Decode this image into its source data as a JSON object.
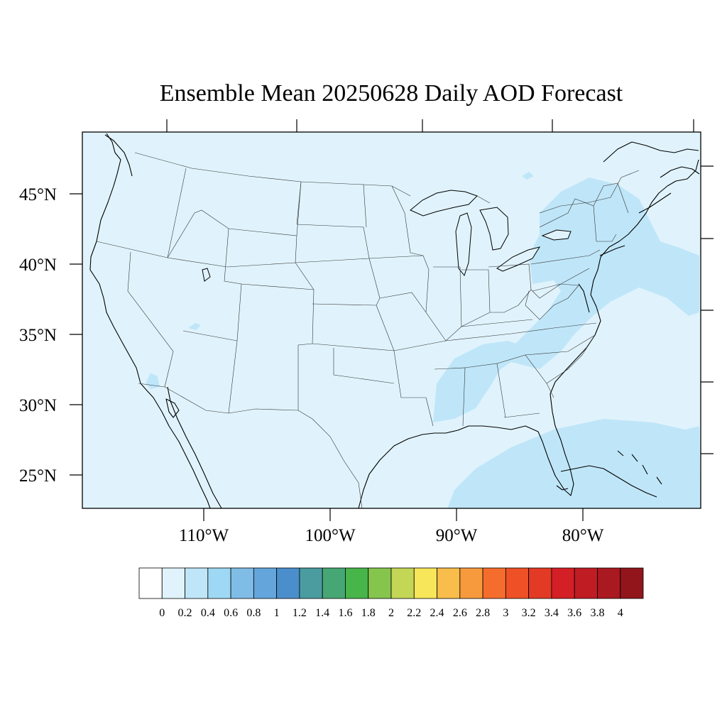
{
  "title": "Ensemble Mean 20250628 Daily AOD Forecast",
  "map": {
    "ocean_color": "#e0f3fc",
    "land_color": "#e0f3fc",
    "haze_color": "#bfe6f8",
    "line_color": "#000000",
    "lon_labels": [
      "110°W",
      "100°W",
      "90°W",
      "80°W"
    ],
    "lat_labels": [
      "45°N",
      "40°N",
      "35°N",
      "30°N",
      "25°N"
    ]
  },
  "colorbar": {
    "colors": [
      "#ffffff",
      "#e0f3fc",
      "#bfe6f8",
      "#9ed8f4",
      "#80bde6",
      "#64a6dc",
      "#4a8fcb",
      "#4a9c9f",
      "#47a774",
      "#47b54a",
      "#86c54d",
      "#c4d656",
      "#f7e55a",
      "#f8bd4a",
      "#f79a3d",
      "#f56d2d",
      "#ee5126",
      "#e23a24",
      "#d41f26",
      "#bf1c24",
      "#aa1920",
      "#92151b"
    ],
    "labels": [
      "0",
      "0.2",
      "0.4",
      "0.6",
      "0.8",
      "1",
      "1.2",
      "1.4",
      "1.6",
      "1.8",
      "2",
      "2.2",
      "2.4",
      "2.6",
      "2.8",
      "3",
      "3.2",
      "3.4",
      "3.6",
      "3.8",
      "4"
    ]
  }
}
